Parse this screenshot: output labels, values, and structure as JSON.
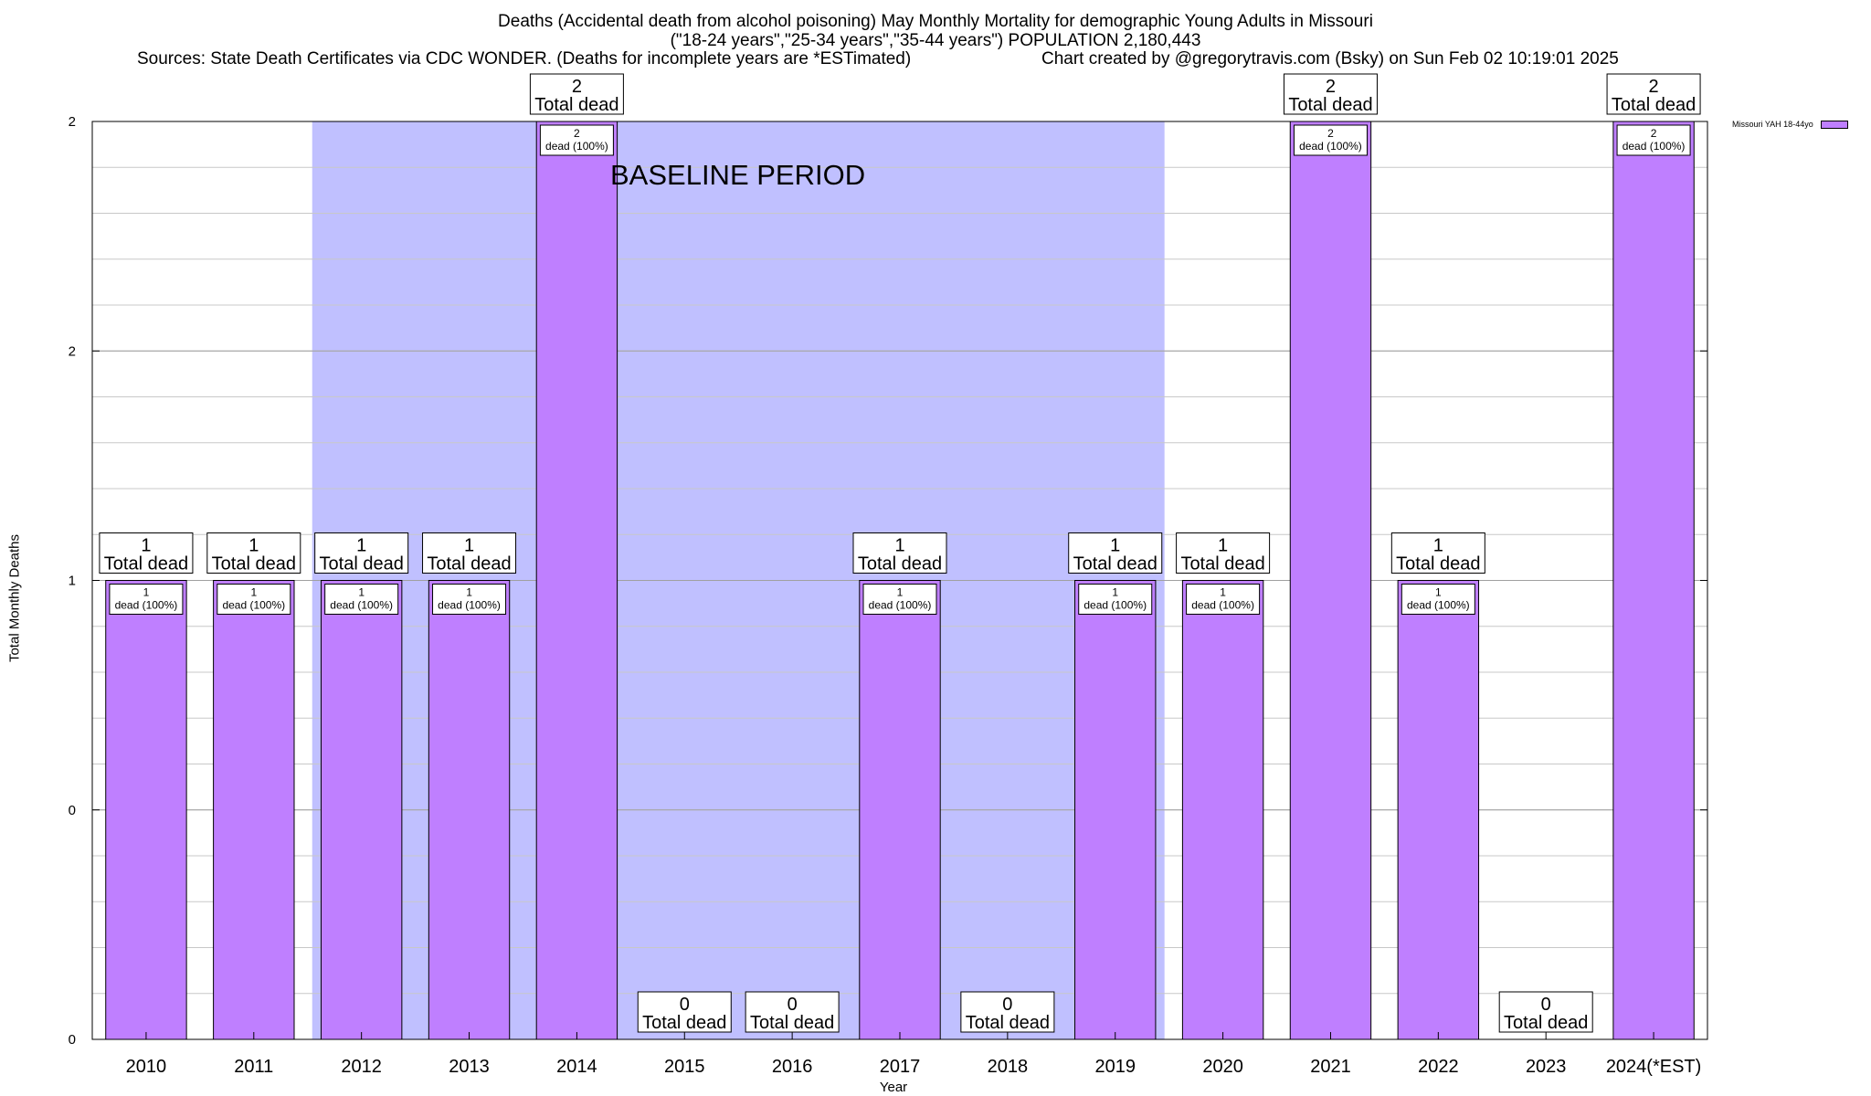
{
  "chart_data": {
    "type": "bar",
    "title": "Deaths (Accidental death from alcohol poisoning) May Monthly Mortality for demographic Young Adults in Missouri",
    "subtitle": "(\"18-24 years\",\"25-34 years\",\"35-44 years\") POPULATION 2,180,443",
    "source_note": "Sources: State Death Certificates via CDC WONDER. (Deaths for incomplete years are *ESTimated)",
    "credit": "Chart created by @gregorytravis.com (Bsky) on Sun Feb 02 10:19:01 2025",
    "xlabel": "Year",
    "ylabel": "Total Monthly Deaths",
    "categories": [
      "2010",
      "2011",
      "2012",
      "2013",
      "2014",
      "2015",
      "2016",
      "2017",
      "2018",
      "2019",
      "2020",
      "2021",
      "2022",
      "2023",
      "2024(*EST)"
    ],
    "series": [
      {
        "name": "Missouri YAH 18-44yo",
        "color": "#bf7fff",
        "values": [
          1,
          1,
          1,
          1,
          2,
          0,
          0,
          1,
          0,
          1,
          1,
          2,
          1,
          0,
          2
        ]
      }
    ],
    "total_labels": [
      "Total dead",
      "Total dead",
      "Total dead",
      "Total dead",
      "Total dead",
      "Total dead",
      "Total dead",
      "Total dead",
      "Total dead",
      "Total dead",
      "Total dead",
      "Total dead",
      "Total dead",
      "Total dead",
      "Total dead"
    ],
    "inner_labels": [
      "dead (100%)",
      "dead (100%)",
      "dead (100%)",
      "dead (100%)",
      "dead (100%)",
      "",
      "",
      "dead (100%)",
      "",
      "dead (100%)",
      "dead (100%)",
      "dead (100%)",
      "dead (100%)",
      "",
      "dead (100%)"
    ],
    "yticks": [
      0,
      0.5,
      1,
      1.5,
      2
    ],
    "ytick_labels": [
      "0",
      "0",
      "1",
      "2",
      "2"
    ],
    "ylim": [
      0,
      2
    ],
    "grid": true,
    "legend": "top-right",
    "baseline_period": {
      "label": "BASELINE PERIOD",
      "from": "2012",
      "to": "2019",
      "color": "#c0c0ff"
    }
  }
}
